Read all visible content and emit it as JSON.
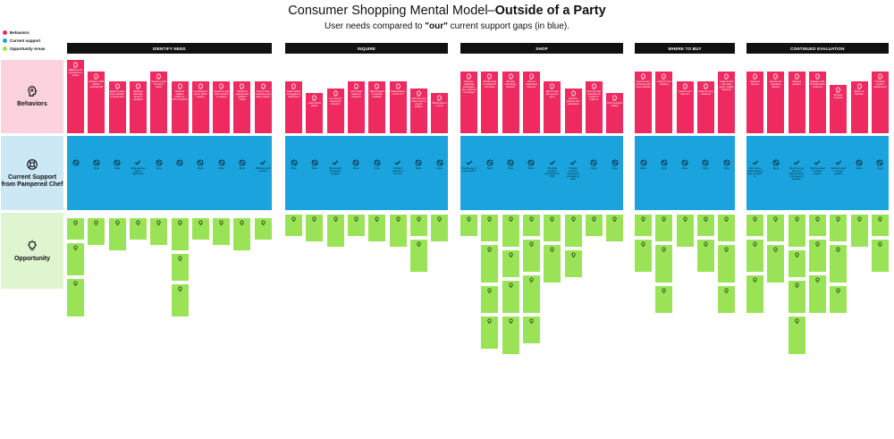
{
  "title": {
    "prefix": "Consumer Shopping Mental Model–",
    "bold": "Outside of a Party"
  },
  "subtitle": {
    "prefix": "User needs compared to ",
    "bold": "\"our\"",
    "suffix": " current support gaps (in blue)."
  },
  "legend": [
    {
      "label": "Behaviors",
      "color": "#ee2a60"
    },
    {
      "label": "Current support",
      "color": "#1aa3dc"
    },
    {
      "label": "Opportunity Areas",
      "color": "#9be356"
    }
  ],
  "rows": {
    "behaviors": {
      "label": "Behaviors",
      "icon": "brain-head-icon"
    },
    "support": {
      "label": "Current Support from Pampered Chef",
      "icon": "lifebuoy-icon"
    },
    "opportunity": {
      "label": "Opportunity",
      "icon": "lightbulb-icon"
    }
  },
  "colors": {
    "behavior": "#ee2a60",
    "support": "#1aa3dc",
    "opportunity": "#9be356",
    "header": "#111111"
  },
  "sections": [
    {
      "name": "IDENTIFY NEED",
      "columns": [
        {
          "behavior": "NEEDS to be exposed to a brand",
          "support": "",
          "opps": 3
        },
        {
          "behavior": "Needs to fulfill kitchen shortfalls (B)",
          "support": "None",
          "opps": 1
        },
        {
          "behavior": "Needs to save time in kitchen & family time",
          "support": "None",
          "opps": 1
        },
        {
          "behavior": "Needs to eliminate stress of weekend",
          "support": "Multi-purpose Kitchen Appliances",
          "opps": 1
        },
        {
          "behavior": "Needs to cook for self or family",
          "support": "None",
          "opps": 1
        },
        {
          "behavior": "Needs to replace broken or worn out items",
          "support": "",
          "opps": 3
        },
        {
          "behavior": "Is exposed to new or better solution",
          "support": "None",
          "opps": 1
        },
        {
          "behavior": "Desires to get both involved in cooking",
          "support": "None",
          "opps": 1
        },
        {
          "behavior": "Starting to prepare and healthier meals",
          "support": "None",
          "opps": 1
        },
        {
          "behavior": "Tries to have something and seeks support",
          "support": "Marketing and content",
          "opps": 1
        }
      ]
    },
    {
      "name": "INQUIRE",
      "columns": [
        {
          "behavior": "Seeks advice of bloggers or influencers",
          "support": "None",
          "opps": 1
        },
        {
          "behavior": "Seek friends advice",
          "support": "None",
          "opps": 1
        },
        {
          "behavior": "Use search engines for research",
          "support": "Best search and loyalty program",
          "opps": 1
        },
        {
          "behavior": "Use social media for research",
          "support": "None",
          "opps": 1
        },
        {
          "behavior": "Read reviews on favorite websites",
          "support": "None",
          "opps": 1
        },
        {
          "behavior": "Read reviews on PC.com",
          "support": "Provide reviews on PC.com",
          "opps": 1
        },
        {
          "behavior": "Visit brick and mortar store to inspect product",
          "support": "None",
          "opps": 2
        },
        {
          "behavior": "Would shop in a store",
          "support": "None",
          "opps": 1
        }
      ]
    },
    {
      "name": "SHOP",
      "columns": [
        {
          "behavior": "Reviews nutritional explanation (e.g. cleaning or storage)",
          "support": "Provide use & care on PDP",
          "opps": 1
        },
        {
          "behavior": "Identify what is needed for the house",
          "support": "None",
          "opps": 4
        },
        {
          "behavior": "Browse technology features",
          "support": "None",
          "opps": 4
        },
        {
          "behavior": "Tries to understand warranty",
          "support": "None",
          "opps": 4
        },
        {
          "behavior": "Want to feel like you can get it",
          "support": "Provided warranty information on PDP",
          "opps": 2
        },
        {
          "behavior": "Reviews warranty and guarantees",
          "support": "Product material information provided on PDP",
          "opps": 2
        },
        {
          "behavior": "Find out what materials the product is made of",
          "support": "None",
          "opps": 1
        },
        {
          "behavior": "Find out brand mission",
          "support": "None",
          "opps": 1
        }
      ]
    },
    {
      "name": "WHERE TO BUY",
      "columns": [
        {
          "behavior": "Look for easy exchange and return policies",
          "support": "None",
          "opps": 2
        },
        {
          "behavior": "Looks for free shipping",
          "support": "None",
          "opps": 3
        },
        {
          "behavior": "Looks for the best CX",
          "support": "None",
          "opps": 1
        },
        {
          "behavior": "Looks for easy checkout",
          "support": "None",
          "opps": 2
        },
        {
          "behavior": "Looks for the best deal (price, quality, discount)",
          "support": "None",
          "opps": 3
        }
      ]
    },
    {
      "name": "CONTINUED EVALUATION",
      "columns": [
        {
          "behavior": "Customer Service",
          "support": "Ship phone and email and have to switch to",
          "opps": 3
        },
        {
          "behavior": "Expects for seamless delivery",
          "support": "None",
          "opps": 2
        },
        {
          "behavior": "Unboxes product",
          "support": "We do not yet have any flagship items, but expect to be better",
          "opps": 4
        },
        {
          "behavior": "Engages with the brand after initial use",
          "support": "Send an email to review product",
          "opps": 3
        },
        {
          "behavior": "Reviews products",
          "support": "Send an email to review product",
          "opps": 3
        },
        {
          "behavior": "Return or Reorder",
          "support": "None",
          "opps": 1
        },
        {
          "behavior": "Considers product replacement",
          "support": "None",
          "opps": 2
        }
      ]
    }
  ]
}
